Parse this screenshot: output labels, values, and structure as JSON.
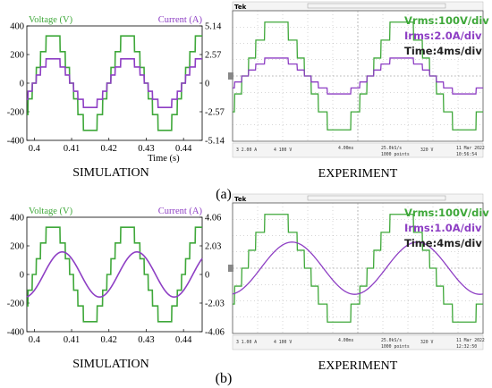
{
  "colors": {
    "voltage": "#3fa83a",
    "current": "#8e3fc4",
    "scope_bg": "#ffffff",
    "scope_grid": "#9a9a9a",
    "scope_frame": "#555555",
    "scope_text_rms": "#3fa83a",
    "scope_text_i": "#8e3fc4"
  },
  "panel_labels": [
    "(a)",
    "(b)"
  ],
  "chart_data": [
    {
      "type": "line",
      "caption": "SIMULATION",
      "xlabel": "Time (s)",
      "xlim": [
        0.398,
        0.445
      ],
      "xticks": [
        0.4,
        0.41,
        0.42,
        0.43,
        0.44
      ],
      "xtick_labels": [
        "0.4",
        "0.41",
        "0.42",
        "0.43",
        "0.44"
      ],
      "ylim_left": [
        -400,
        400
      ],
      "yticks_left": [
        -400,
        -200,
        0,
        200,
        400
      ],
      "ytick_labels_left": [
        "-400",
        "-200",
        "0",
        "200",
        "400"
      ],
      "ytick_labels_right": [
        "-5.14",
        "-2.57",
        "0",
        "2.57",
        "5.14"
      ],
      "ylim_right": [
        -5.14,
        5.14
      ],
      "series": [
        {
          "name": "Voltage (V)",
          "axis": "left",
          "shape": "staircase",
          "amplitude": 330,
          "frequency_hz": 50,
          "phase_deg": 0,
          "levels": 7
        },
        {
          "name": "Current (A)",
          "axis": "right",
          "shape": "staircase",
          "amplitude": 2.18,
          "frequency_hz": 50,
          "phase_deg": 0,
          "levels": 7
        }
      ]
    },
    {
      "type": "line",
      "caption": "EXPERIMENT",
      "scope_header": "Tek",
      "scope_annotations": [
        "Vrms:100V/div",
        "Irms:2.0A/div",
        "Time:4ms/div"
      ],
      "scope_footer": [
        "3  2.00 A",
        "4  100 V",
        "4.00ms",
        "25.0kS/s",
        "1000 points",
        "320 V",
        "11 Mar 2022",
        "10:56:54"
      ],
      "series": [
        {
          "name": "Voltage",
          "shape": "staircase",
          "amplitude_div": 3.3,
          "period_div": 5.0,
          "phase_deg": 0
        },
        {
          "name": "Current",
          "shape": "staircase",
          "amplitude_div": 1.1,
          "period_div": 5.0,
          "phase_deg": 0
        }
      ]
    },
    {
      "type": "line",
      "caption": "SIMULATION",
      "xlabel": "",
      "xlim": [
        0.398,
        0.445
      ],
      "xticks": [
        0.4,
        0.41,
        0.42,
        0.43,
        0.44
      ],
      "xtick_labels": [
        "0.4",
        "0.41",
        "0.42",
        "0.43",
        "0.44"
      ],
      "ylim_left": [
        -400,
        400
      ],
      "yticks_left": [
        -400,
        -200,
        0,
        200,
        400
      ],
      "ytick_labels_left": [
        "-400",
        "-200",
        "0",
        "200",
        "400"
      ],
      "ytick_labels_right": [
        "-4.06",
        "-2.03",
        "0",
        "2.03",
        "4.06"
      ],
      "ylim_right": [
        -4.06,
        4.06
      ],
      "series": [
        {
          "name": "Voltage (V)",
          "axis": "left",
          "shape": "staircase",
          "amplitude": 330,
          "frequency_hz": 50,
          "phase_deg": 0,
          "levels": 7
        },
        {
          "name": "Current (A)",
          "axis": "right",
          "shape": "sine",
          "amplitude": 1.6,
          "frequency_hz": 50,
          "phase_deg": -45
        }
      ]
    },
    {
      "type": "line",
      "caption": "EXPERIMENT",
      "scope_header": "Tek",
      "scope_annotations": [
        "Vrms:100V/div",
        "Irms:1.0A/div",
        "Time:4ms/div"
      ],
      "scope_footer": [
        "3  1.00 A",
        "4  100 V",
        "4.00ms",
        "25.0kS/s",
        "1000 points",
        "320 V",
        "11 Mar 2022",
        "12:32:50"
      ],
      "series": [
        {
          "name": "Voltage",
          "shape": "staircase",
          "amplitude_div": 3.3,
          "period_div": 5.0,
          "phase_deg": 0
        },
        {
          "name": "Current",
          "shape": "sine",
          "amplitude_div": 1.6,
          "period_div": 5.0,
          "phase_deg": -45
        }
      ]
    }
  ]
}
